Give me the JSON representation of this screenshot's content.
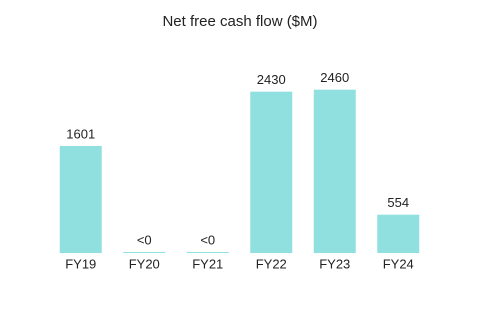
{
  "chart_data": {
    "type": "bar",
    "title": "Net free cash flow ($M)",
    "categories": [
      "FY19",
      "FY20",
      "FY21",
      "FY22",
      "FY23",
      "FY24"
    ],
    "values": [
      1601,
      -15,
      -15,
      2430,
      2460,
      554
    ],
    "value_labels": [
      "1601",
      "<0",
      "<0",
      "2430",
      "2460",
      "554"
    ],
    "color": "#8fe0df",
    "ylim": [
      -30,
      2600
    ]
  }
}
